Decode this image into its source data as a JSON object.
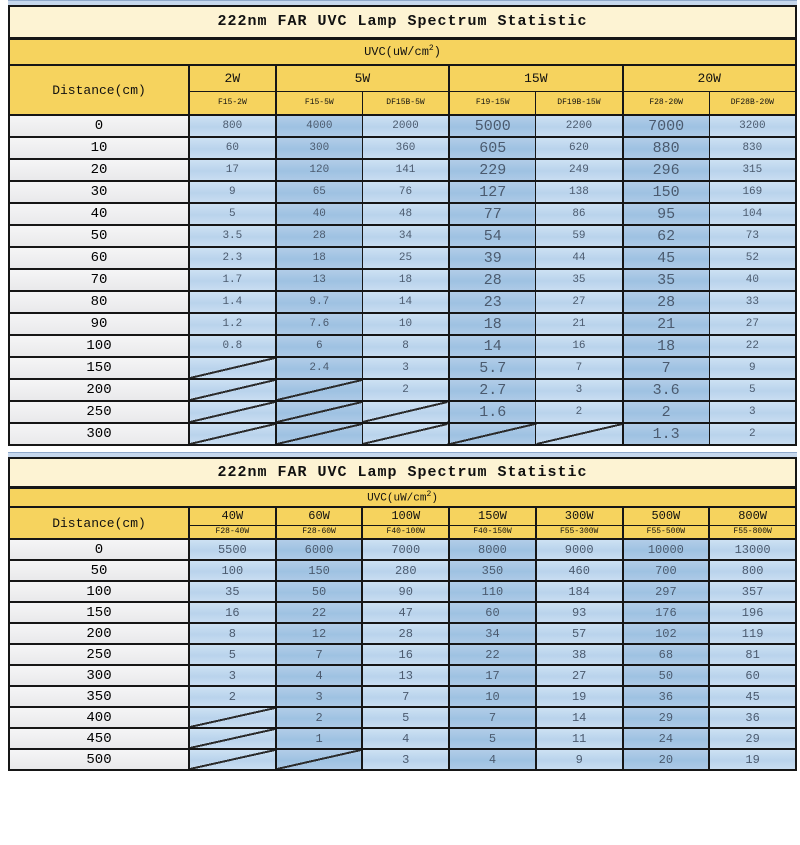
{
  "colors": {
    "header_gold": "#f6d35e",
    "title_cream": "#fdf3d3",
    "cell_light_blue": "#bdd5ed",
    "cell_dark_blue": "#a2c4e3",
    "distance_gray": "#efeff1",
    "border_black": "#161616",
    "data_text": "#4b5a6e",
    "top_strip_blue": "#c6d7ec"
  },
  "tables": [
    {
      "title": "222nm FAR UVC Lamp Spectrum Statistic",
      "uvc_label": {
        "prefix": "UVC(uW/cm",
        "sup": "2",
        "suffix": ")"
      },
      "distance_header": "Distance(cm)",
      "groups": [
        {
          "label": "2W",
          "subs": [
            "F15-2W"
          ]
        },
        {
          "label": "5W",
          "subs": [
            "F15-5W",
            "DF15B-5W"
          ]
        },
        {
          "label": "15W",
          "subs": [
            "F19-15W",
            "DF19B-15W"
          ]
        },
        {
          "label": "20W",
          "subs": [
            "F28-20W",
            "DF28B-20W"
          ]
        }
      ],
      "col_shades": [
        "light",
        "dark",
        "light",
        "dark big",
        "light",
        "dark big",
        "light"
      ],
      "rows": [
        {
          "distance": "0",
          "values": [
            "800",
            "4000",
            "2000",
            "5000",
            "2200",
            "7000",
            "3200"
          ]
        },
        {
          "distance": "10",
          "values": [
            "60",
            "300",
            "360",
            "605",
            "620",
            "880",
            "830"
          ]
        },
        {
          "distance": "20",
          "values": [
            "17",
            "120",
            "141",
            "229",
            "249",
            "296",
            "315"
          ]
        },
        {
          "distance": "30",
          "values": [
            "9",
            "65",
            "76",
            "127",
            "138",
            "150",
            "169"
          ]
        },
        {
          "distance": "40",
          "values": [
            "5",
            "40",
            "48",
            "77",
            "86",
            "95",
            "104"
          ]
        },
        {
          "distance": "50",
          "values": [
            "3.5",
            "28",
            "34",
            "54",
            "59",
            "62",
            "73"
          ]
        },
        {
          "distance": "60",
          "values": [
            "2.3",
            "18",
            "25",
            "39",
            "44",
            "45",
            "52"
          ]
        },
        {
          "distance": "70",
          "values": [
            "1.7",
            "13",
            "18",
            "28",
            "35",
            "35",
            "40"
          ]
        },
        {
          "distance": "80",
          "values": [
            "1.4",
            "9.7",
            "14",
            "23",
            "27",
            "28",
            "33"
          ]
        },
        {
          "distance": "90",
          "values": [
            "1.2",
            "7.6",
            "10",
            "18",
            "21",
            "21",
            "27"
          ]
        },
        {
          "distance": "100",
          "values": [
            "0.8",
            "6",
            "8",
            "14",
            "16",
            "18",
            "22"
          ]
        },
        {
          "distance": "150",
          "values": [
            null,
            "2.4",
            "3",
            "5.7",
            "7",
            "7",
            "9"
          ]
        },
        {
          "distance": "200",
          "values": [
            null,
            null,
            "2",
            "2.7",
            "3",
            "3.6",
            "5"
          ]
        },
        {
          "distance": "250",
          "values": [
            null,
            null,
            null,
            "1.6",
            "2",
            "2",
            "3"
          ]
        },
        {
          "distance": "300",
          "values": [
            null,
            null,
            null,
            null,
            null,
            "1.3",
            "2"
          ]
        }
      ]
    },
    {
      "title": "222nm FAR UVC Lamp Spectrum Statistic",
      "uvc_label": {
        "prefix": "UVC(uW/cm",
        "sup": "2",
        "suffix": ")"
      },
      "distance_header": "Distance(cm)",
      "groups": [
        {
          "label": "40W",
          "subs": [
            "F28-40W"
          ]
        },
        {
          "label": "60W",
          "subs": [
            "F28-60W"
          ]
        },
        {
          "label": "100W",
          "subs": [
            "F40-100W"
          ]
        },
        {
          "label": "150W",
          "subs": [
            "F40-150W"
          ]
        },
        {
          "label": "300W",
          "subs": [
            "F55-300W"
          ]
        },
        {
          "label": "500W",
          "subs": [
            "F55-500W"
          ]
        },
        {
          "label": "800W",
          "subs": [
            "F55-800W"
          ]
        }
      ],
      "col_shades": [
        "light",
        "dark",
        "light",
        "dark",
        "light",
        "dark",
        "light"
      ],
      "rows": [
        {
          "distance": "0",
          "values": [
            "5500",
            "6000",
            "7000",
            "8000",
            "9000",
            "10000",
            "13000"
          ]
        },
        {
          "distance": "50",
          "values": [
            "100",
            "150",
            "280",
            "350",
            "460",
            "700",
            "800"
          ]
        },
        {
          "distance": "100",
          "values": [
            "35",
            "50",
            "90",
            "110",
            "184",
            "297",
            "357"
          ]
        },
        {
          "distance": "150",
          "values": [
            "16",
            "22",
            "47",
            "60",
            "93",
            "176",
            "196"
          ]
        },
        {
          "distance": "200",
          "values": [
            "8",
            "12",
            "28",
            "34",
            "57",
            "102",
            "119"
          ]
        },
        {
          "distance": "250",
          "values": [
            "5",
            "7",
            "16",
            "22",
            "38",
            "68",
            "81"
          ]
        },
        {
          "distance": "300",
          "values": [
            "3",
            "4",
            "13",
            "17",
            "27",
            "50",
            "60"
          ]
        },
        {
          "distance": "350",
          "values": [
            "2",
            "3",
            "7",
            "10",
            "19",
            "36",
            "45"
          ]
        },
        {
          "distance": "400",
          "values": [
            null,
            "2",
            "5",
            "7",
            "14",
            "29",
            "36"
          ]
        },
        {
          "distance": "450",
          "values": [
            null,
            "1",
            "4",
            "5",
            "11",
            "24",
            "29"
          ]
        },
        {
          "distance": "500",
          "values": [
            null,
            null,
            "3",
            "4",
            "9",
            "20",
            "19"
          ]
        }
      ]
    }
  ]
}
